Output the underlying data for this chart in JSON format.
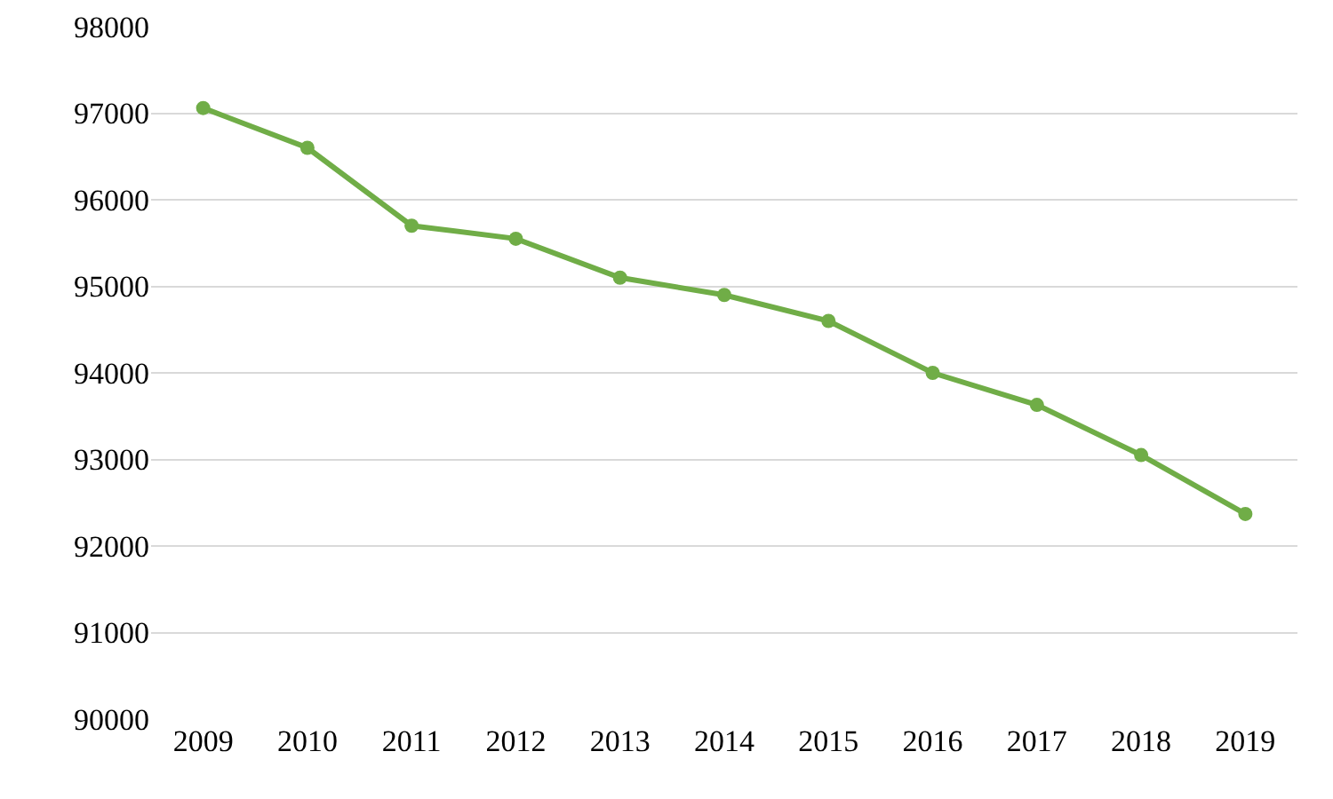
{
  "chart_data": {
    "type": "line",
    "categories": [
      "2009",
      "2010",
      "2011",
      "2012",
      "2013",
      "2014",
      "2015",
      "2016",
      "2017",
      "2018",
      "2019"
    ],
    "series": [
      {
        "color": "#70ad47",
        "values": [
          97060,
          96600,
          95700,
          95550,
          95100,
          94900,
          94600,
          94000,
          93630,
          93050,
          92370
        ]
      }
    ],
    "ylim": [
      90000,
      98000
    ],
    "yticks": [
      90000,
      91000,
      92000,
      93000,
      94000,
      95000,
      96000,
      97000,
      98000
    ],
    "grid": "y",
    "marker": "circle",
    "line_style": "solid"
  }
}
